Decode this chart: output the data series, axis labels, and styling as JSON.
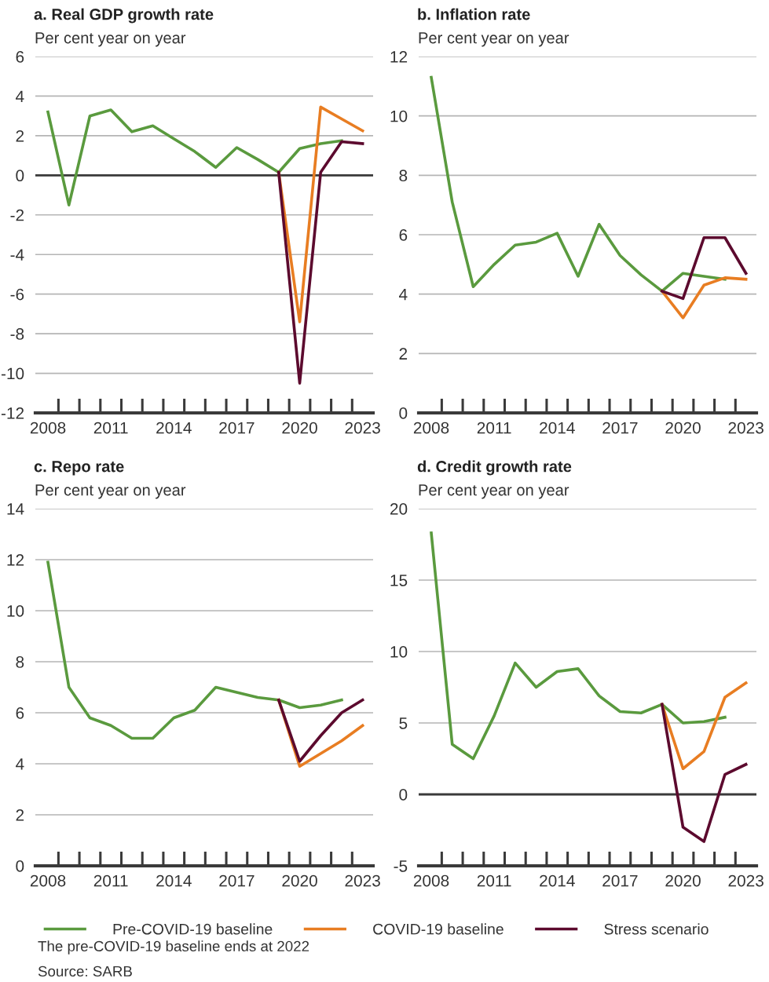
{
  "chart_data": [
    {
      "type": "line",
      "title": "a. Real GDP growth rate",
      "subtitle": "Per cent year on year",
      "categories": [
        "2008",
        null,
        null,
        "2011",
        null,
        null,
        "2014",
        null,
        null,
        "2017",
        null,
        null,
        "2020",
        null,
        null,
        "2023"
      ],
      "series": [
        {
          "name": "Pre-COVID-19 baseline",
          "color": "#5a9a3e",
          "values": [
            3.2,
            -1.5,
            3.0,
            3.3,
            2.2,
            2.5,
            1.85,
            1.2,
            0.4,
            1.4,
            0.8,
            0.15,
            1.35,
            1.6,
            1.75,
            null
          ]
        },
        {
          "name": "COVID-19 baseline",
          "color": "#e87d22",
          "values": [
            null,
            null,
            null,
            null,
            null,
            null,
            null,
            null,
            null,
            null,
            null,
            0.15,
            -7.4,
            3.45,
            2.85,
            2.25
          ]
        },
        {
          "name": "Stress scenario",
          "color": "#5c0a2e",
          "values": [
            null,
            null,
            null,
            null,
            null,
            null,
            null,
            null,
            null,
            null,
            null,
            0.15,
            -10.5,
            0.15,
            1.7,
            1.6
          ]
        }
      ],
      "ylim": [
        -12,
        6
      ],
      "yticks": [
        -12,
        -10,
        -8,
        -6,
        -4,
        -2,
        0,
        2,
        4,
        6
      ],
      "grid": "y",
      "legend": "bottom",
      "ref_lines": [
        {
          "axis": "y",
          "value": 0,
          "label": null,
          "color": "#3a3a3a"
        }
      ]
    },
    {
      "type": "line",
      "title": "b. Inflation rate",
      "subtitle": "Per cent year on year",
      "categories": [
        "2008",
        null,
        null,
        "2011",
        null,
        null,
        "2014",
        null,
        null,
        "2017",
        null,
        null,
        "2020",
        null,
        null,
        "2023"
      ],
      "series": [
        {
          "name": "Pre-COVID-19 baseline",
          "color": "#5a9a3e",
          "values": [
            11.3,
            7.1,
            4.25,
            5.0,
            5.65,
            5.75,
            6.05,
            4.6,
            6.35,
            5.3,
            4.65,
            4.1,
            4.7,
            4.6,
            4.5,
            null
          ]
        },
        {
          "name": "COVID-19 baseline",
          "color": "#e87d22",
          "values": [
            null,
            null,
            null,
            null,
            null,
            null,
            null,
            null,
            null,
            null,
            null,
            4.1,
            3.2,
            4.3,
            4.55,
            4.5
          ]
        },
        {
          "name": "Stress scenario",
          "color": "#5c0a2e",
          "values": [
            null,
            null,
            null,
            null,
            null,
            null,
            null,
            null,
            null,
            null,
            null,
            4.1,
            3.85,
            5.9,
            5.9,
            4.7
          ]
        }
      ],
      "ylim": [
        0,
        12
      ],
      "yticks": [
        0,
        2,
        4,
        6,
        8,
        10,
        12
      ],
      "grid": "y"
    },
    {
      "type": "line",
      "title": "c. Repo rate",
      "subtitle": "Per cent year on year",
      "categories": [
        "2008",
        null,
        null,
        "2011",
        null,
        null,
        "2014",
        null,
        null,
        "2017",
        null,
        null,
        "2020",
        null,
        null,
        "2023"
      ],
      "series": [
        {
          "name": "Pre-COVID-19 baseline",
          "color": "#5a9a3e",
          "values": [
            11.9,
            7.0,
            5.8,
            5.5,
            5.0,
            5.0,
            5.8,
            6.1,
            7.0,
            6.8,
            6.6,
            6.5,
            6.2,
            6.3,
            6.5,
            null
          ]
        },
        {
          "name": "COVID-19 baseline",
          "color": "#e87d22",
          "values": [
            null,
            null,
            null,
            null,
            null,
            null,
            null,
            null,
            null,
            null,
            null,
            6.5,
            3.9,
            4.4,
            4.9,
            5.5
          ]
        },
        {
          "name": "Stress scenario",
          "color": "#5c0a2e",
          "values": [
            null,
            null,
            null,
            null,
            null,
            null,
            null,
            null,
            null,
            null,
            null,
            6.5,
            4.1,
            5.1,
            6.0,
            6.5
          ]
        }
      ],
      "ylim": [
        0,
        14
      ],
      "yticks": [
        0,
        2,
        4,
        6,
        8,
        10,
        12,
        14
      ],
      "grid": "y"
    },
    {
      "type": "line",
      "title": "d. Credit growth rate",
      "subtitle": "Per cent year on year",
      "categories": [
        "2008",
        null,
        null,
        "2011",
        null,
        null,
        "2014",
        null,
        null,
        "2017",
        null,
        null,
        "2020",
        null,
        null,
        "2023"
      ],
      "series": [
        {
          "name": "Pre-COVID-19 baseline",
          "color": "#5a9a3e",
          "values": [
            18.3,
            3.5,
            2.5,
            5.5,
            9.2,
            7.5,
            8.6,
            8.8,
            6.9,
            5.8,
            5.7,
            6.3,
            5.0,
            5.1,
            5.4,
            null
          ]
        },
        {
          "name": "COVID-19 baseline",
          "color": "#e87d22",
          "values": [
            null,
            null,
            null,
            null,
            null,
            null,
            null,
            null,
            null,
            null,
            null,
            6.3,
            1.8,
            3.0,
            6.8,
            7.8
          ]
        },
        {
          "name": "Stress scenario",
          "color": "#5c0a2e",
          "values": [
            null,
            null,
            null,
            null,
            null,
            null,
            null,
            null,
            null,
            null,
            null,
            6.3,
            -2.3,
            -3.3,
            1.4,
            2.1
          ]
        }
      ],
      "ylim": [
        -5,
        20
      ],
      "yticks": [
        -5,
        0,
        5,
        10,
        15,
        20
      ],
      "grid": "y",
      "ref_lines": [
        {
          "axis": "y",
          "value": 0,
          "label": null,
          "color": "#3a3a3a"
        }
      ],
      "legend": "bottom",
      "annotations": [
        "The pre-COVID-19 baseline ends at 2022",
        "Source: SARB"
      ]
    }
  ]
}
